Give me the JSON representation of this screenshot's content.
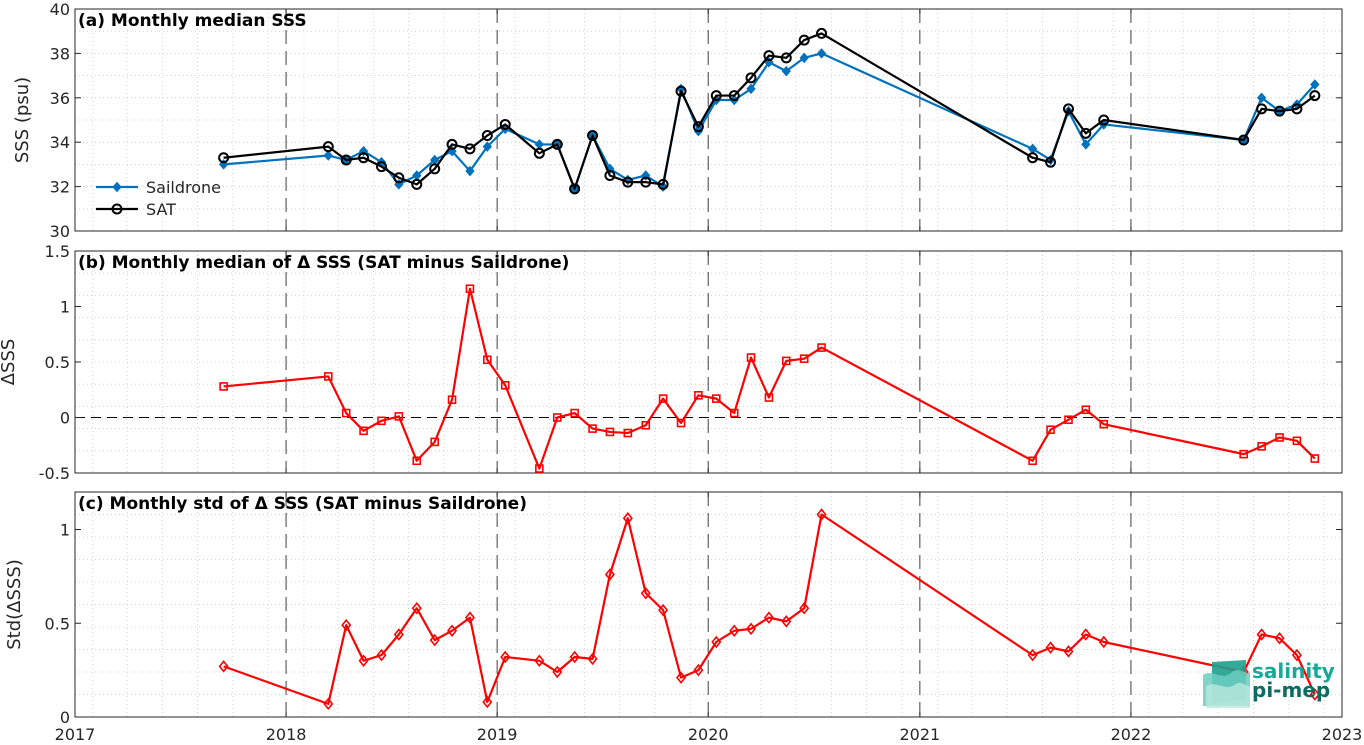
{
  "chart_data": [
    {
      "type": "line",
      "title": "(a) Monthly median SSS",
      "ylabel": "SSS (psu)",
      "ylim": [
        30,
        40
      ],
      "yticks": [
        "30",
        "32",
        "34",
        "36",
        "38",
        "40"
      ],
      "xlim": [
        "2017-01-01",
        "2023-01-01"
      ],
      "xticks": [
        "2017",
        "2018",
        "2019",
        "2020",
        "2021",
        "2022",
        "2023"
      ],
      "grid": "minor-dotted",
      "year_lines": "dashed",
      "legend_position": "bottom-left",
      "series": [
        {
          "name": "Saildrone",
          "color": "#0072BD",
          "marker": "filled-diamond",
          "points": [
            [
              "2017-09-15",
              33.0
            ],
            [
              "2018-03-15",
              33.4
            ],
            [
              "2018-04-15",
              33.2
            ],
            [
              "2018-05-15",
              33.6
            ],
            [
              "2018-06-15",
              33.1
            ],
            [
              "2018-07-15",
              32.1
            ],
            [
              "2018-08-15",
              32.5
            ],
            [
              "2018-09-15",
              33.2
            ],
            [
              "2018-10-15",
              33.6
            ],
            [
              "2018-11-15",
              32.7
            ],
            [
              "2018-12-15",
              33.8
            ],
            [
              "2019-01-15",
              34.6
            ],
            [
              "2019-03-15",
              33.9
            ],
            [
              "2019-04-15",
              33.9
            ],
            [
              "2019-05-15",
              31.9
            ],
            [
              "2019-06-15",
              34.3
            ],
            [
              "2019-07-15",
              32.8
            ],
            [
              "2019-08-15",
              32.3
            ],
            [
              "2019-09-15",
              32.5
            ],
            [
              "2019-10-15",
              32.0
            ],
            [
              "2019-11-15",
              36.4
            ],
            [
              "2019-12-15",
              34.5
            ],
            [
              "2020-01-15",
              35.9
            ],
            [
              "2020-02-15",
              35.9
            ],
            [
              "2020-03-15",
              36.4
            ],
            [
              "2020-04-15",
              37.6
            ],
            [
              "2020-05-15",
              37.2
            ],
            [
              "2020-06-15",
              37.8
            ],
            [
              "2020-07-15",
              38.0
            ],
            [
              "2021-07-15",
              33.7
            ],
            [
              "2021-08-15",
              33.2
            ],
            [
              "2021-09-15",
              35.4
            ],
            [
              "2021-10-15",
              33.9
            ],
            [
              "2021-11-15",
              34.8
            ],
            [
              "2022-07-15",
              34.1
            ],
            [
              "2022-08-15",
              36.0
            ],
            [
              "2022-09-15",
              35.4
            ],
            [
              "2022-10-15",
              35.7
            ],
            [
              "2022-11-15",
              36.6
            ]
          ]
        },
        {
          "name": "SAT",
          "color": "#000000",
          "marker": "open-circle",
          "points": [
            [
              "2017-09-15",
              33.3
            ],
            [
              "2018-03-15",
              33.8
            ],
            [
              "2018-04-15",
              33.2
            ],
            [
              "2018-05-15",
              33.3
            ],
            [
              "2018-06-15",
              32.9
            ],
            [
              "2018-07-15",
              32.4
            ],
            [
              "2018-08-15",
              32.1
            ],
            [
              "2018-09-15",
              32.8
            ],
            [
              "2018-10-15",
              33.9
            ],
            [
              "2018-11-15",
              33.7
            ],
            [
              "2018-12-15",
              34.3
            ],
            [
              "2019-01-15",
              34.8
            ],
            [
              "2019-03-15",
              33.5
            ],
            [
              "2019-04-15",
              33.9
            ],
            [
              "2019-05-15",
              31.9
            ],
            [
              "2019-06-15",
              34.3
            ],
            [
              "2019-07-15",
              32.5
            ],
            [
              "2019-08-15",
              32.2
            ],
            [
              "2019-09-15",
              32.2
            ],
            [
              "2019-10-15",
              32.1
            ],
            [
              "2019-11-15",
              36.3
            ],
            [
              "2019-12-15",
              34.7
            ],
            [
              "2020-01-15",
              36.1
            ],
            [
              "2020-02-15",
              36.1
            ],
            [
              "2020-03-15",
              36.9
            ],
            [
              "2020-04-15",
              37.9
            ],
            [
              "2020-05-15",
              37.8
            ],
            [
              "2020-06-15",
              38.6
            ],
            [
              "2020-07-15",
              38.9
            ],
            [
              "2021-07-15",
              33.3
            ],
            [
              "2021-08-15",
              33.1
            ],
            [
              "2021-09-15",
              35.5
            ],
            [
              "2021-10-15",
              34.4
            ],
            [
              "2021-11-15",
              35.0
            ],
            [
              "2022-07-15",
              34.1
            ],
            [
              "2022-08-15",
              35.5
            ],
            [
              "2022-09-15",
              35.4
            ],
            [
              "2022-10-15",
              35.5
            ],
            [
              "2022-11-15",
              36.1
            ]
          ]
        }
      ]
    },
    {
      "type": "line",
      "title": "(b) Monthly median of Δ SSS (SAT minus Saildrone)",
      "ylabel": "ΔSSS",
      "ylim": [
        -0.5,
        1.5
      ],
      "yticks": [
        "-0.5",
        "0",
        "0.5",
        "1",
        "1.5"
      ],
      "xlim": [
        "2017-01-01",
        "2023-01-01"
      ],
      "xticks": [
        "2017",
        "2018",
        "2019",
        "2020",
        "2021",
        "2022",
        "2023"
      ],
      "grid": "minor-dotted",
      "year_lines": "dashed",
      "zero_line": "dashed",
      "series": [
        {
          "color": "#FF0000",
          "marker": "open-square",
          "points": [
            [
              "2017-09-15",
              0.28
            ],
            [
              "2018-03-15",
              0.37
            ],
            [
              "2018-04-15",
              0.04
            ],
            [
              "2018-05-15",
              -0.12
            ],
            [
              "2018-06-15",
              -0.03
            ],
            [
              "2018-07-15",
              0.01
            ],
            [
              "2018-08-15",
              -0.39
            ],
            [
              "2018-09-15",
              -0.22
            ],
            [
              "2018-10-15",
              0.16
            ],
            [
              "2018-11-15",
              1.16
            ],
            [
              "2018-12-15",
              0.52
            ],
            [
              "2019-01-15",
              0.29
            ],
            [
              "2019-03-15",
              -0.46
            ],
            [
              "2019-04-15",
              0.0
            ],
            [
              "2019-05-15",
              0.04
            ],
            [
              "2019-06-15",
              -0.1
            ],
            [
              "2019-07-15",
              -0.13
            ],
            [
              "2019-08-15",
              -0.14
            ],
            [
              "2019-09-15",
              -0.07
            ],
            [
              "2019-10-15",
              0.17
            ],
            [
              "2019-11-15",
              -0.05
            ],
            [
              "2019-12-15",
              0.2
            ],
            [
              "2020-01-15",
              0.17
            ],
            [
              "2020-02-15",
              0.04
            ],
            [
              "2020-03-15",
              0.54
            ],
            [
              "2020-04-15",
              0.18
            ],
            [
              "2020-05-15",
              0.51
            ],
            [
              "2020-06-15",
              0.53
            ],
            [
              "2020-07-15",
              0.63
            ],
            [
              "2021-07-15",
              -0.39
            ],
            [
              "2021-08-15",
              -0.11
            ],
            [
              "2021-09-15",
              -0.02
            ],
            [
              "2021-10-15",
              0.07
            ],
            [
              "2021-11-15",
              -0.06
            ],
            [
              "2022-07-15",
              -0.33
            ],
            [
              "2022-08-15",
              -0.26
            ],
            [
              "2022-09-15",
              -0.18
            ],
            [
              "2022-10-15",
              -0.21
            ],
            [
              "2022-11-15",
              -0.37
            ]
          ]
        }
      ]
    },
    {
      "type": "line",
      "title": "(c) Monthly std of Δ SSS (SAT minus Saildrone)",
      "ylabel": "Std(ΔSSS)",
      "ylim": [
        0,
        1.2
      ],
      "yticks": [
        "0",
        "0.5",
        "1"
      ],
      "xlim": [
        "2017-01-01",
        "2023-01-01"
      ],
      "xticks": [
        "2017",
        "2018",
        "2019",
        "2020",
        "2021",
        "2022",
        "2023"
      ],
      "grid": "minor-dotted",
      "year_lines": "dashed",
      "series": [
        {
          "color": "#FF0000",
          "marker": "open-diamond",
          "points": [
            [
              "2017-09-15",
              0.27
            ],
            [
              "2018-03-15",
              0.07
            ],
            [
              "2018-04-15",
              0.49
            ],
            [
              "2018-05-15",
              0.3
            ],
            [
              "2018-06-15",
              0.33
            ],
            [
              "2018-07-15",
              0.44
            ],
            [
              "2018-08-15",
              0.58
            ],
            [
              "2018-09-15",
              0.41
            ],
            [
              "2018-10-15",
              0.46
            ],
            [
              "2018-11-15",
              0.53
            ],
            [
              "2018-12-15",
              0.08
            ],
            [
              "2019-01-15",
              0.32
            ],
            [
              "2019-03-15",
              0.3
            ],
            [
              "2019-04-15",
              0.24
            ],
            [
              "2019-05-15",
              0.32
            ],
            [
              "2019-06-15",
              0.31
            ],
            [
              "2019-07-15",
              0.76
            ],
            [
              "2019-08-15",
              1.06
            ],
            [
              "2019-09-15",
              0.66
            ],
            [
              "2019-10-15",
              0.57
            ],
            [
              "2019-11-15",
              0.21
            ],
            [
              "2019-12-15",
              0.25
            ],
            [
              "2020-01-15",
              0.4
            ],
            [
              "2020-02-15",
              0.46
            ],
            [
              "2020-03-15",
              0.47
            ],
            [
              "2020-04-15",
              0.53
            ],
            [
              "2020-05-15",
              0.51
            ],
            [
              "2020-06-15",
              0.58
            ],
            [
              "2020-07-15",
              1.08
            ],
            [
              "2021-07-15",
              0.33
            ],
            [
              "2021-08-15",
              0.37
            ],
            [
              "2021-09-15",
              0.35
            ],
            [
              "2021-10-15",
              0.44
            ],
            [
              "2021-11-15",
              0.4
            ],
            [
              "2022-07-15",
              0.24
            ],
            [
              "2022-08-15",
              0.44
            ],
            [
              "2022-09-15",
              0.42
            ],
            [
              "2022-10-15",
              0.33
            ],
            [
              "2022-11-15",
              0.12
            ]
          ]
        }
      ]
    }
  ],
  "logo": {
    "line1": "salinity",
    "line2": "pi-mep",
    "color1": "#16A99A",
    "color2": "#0E6B63"
  }
}
